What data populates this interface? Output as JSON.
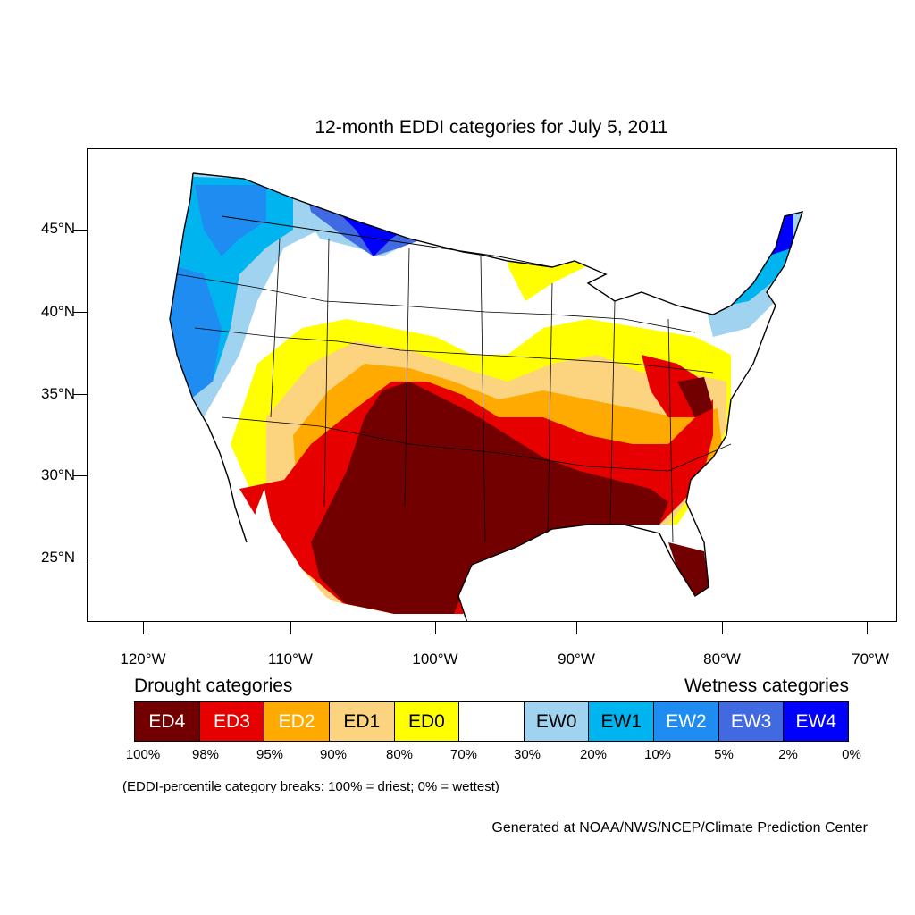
{
  "title": "12-month EDDI categories for July 5, 2011",
  "lat_labels": [
    "45°N",
    "40°N",
    "35°N",
    "30°N",
    "25°N"
  ],
  "lon_labels": [
    "120°W",
    "110°W",
    "100°W",
    "90°W",
    "80°W",
    "70°W"
  ],
  "legend": {
    "drought_heading": "Drought categories",
    "wetness_heading": "Wetness categories",
    "categories": [
      {
        "label": "ED4",
        "color": "#730000",
        "text_color": "#ffffff"
      },
      {
        "label": "ED3",
        "color": "#e60000",
        "text_color": "#ffffff"
      },
      {
        "label": "ED2",
        "color": "#ffaa00",
        "text_color": "#ffffff"
      },
      {
        "label": "ED1",
        "color": "#fcd37f",
        "text_color": "#000000"
      },
      {
        "label": "ED0",
        "color": "#ffff00",
        "text_color": "#000000"
      },
      {
        "label": "",
        "color": "#ffffff",
        "text_color": "#000000"
      },
      {
        "label": "EW0",
        "color": "#a0d3ef",
        "text_color": "#000000"
      },
      {
        "label": "EW1",
        "color": "#00b4f0",
        "text_color": "#000000"
      },
      {
        "label": "EW2",
        "color": "#1e8cf0",
        "text_color": "#ffffff"
      },
      {
        "label": "EW3",
        "color": "#4169e1",
        "text_color": "#ffffff"
      },
      {
        "label": "EW4",
        "color": "#0000ff",
        "text_color": "#ffffff"
      }
    ],
    "breaks": [
      "100%",
      "98%",
      "95%",
      "90%",
      "80%",
      "70%",
      "30%",
      "20%",
      "10%",
      "5%",
      "2%",
      "0%"
    ]
  },
  "note": "(EDDI-percentile category breaks: 100% = driest; 0% = wettest)",
  "credit": "Generated at NOAA/NWS/NCEP/Climate Prediction Center"
}
